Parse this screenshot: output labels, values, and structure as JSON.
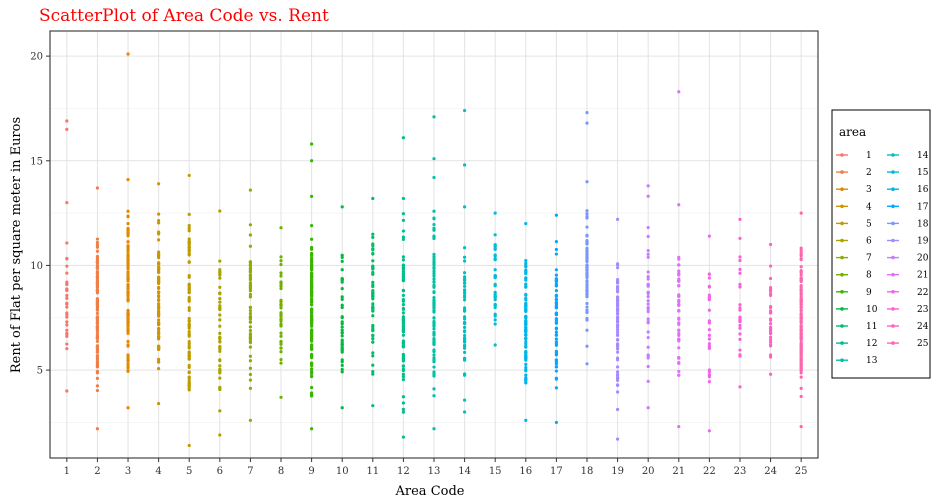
{
  "chart_data": {
    "type": "scatter",
    "title": "ScatterPlot of Area Code vs. Rent",
    "xlabel": "Area Code",
    "ylabel": "Rent of Flat per square meter in Euros",
    "xlim": [
      0.45,
      25.55
    ],
    "ylim": [
      0.8,
      21.2
    ],
    "x_ticks": [
      1,
      2,
      3,
      4,
      5,
      6,
      7,
      8,
      9,
      10,
      11,
      12,
      13,
      14,
      15,
      16,
      17,
      18,
      19,
      20,
      21,
      22,
      23,
      24,
      25
    ],
    "y_ticks": [
      5,
      10,
      15,
      20
    ],
    "grid": true,
    "legend": {
      "title": "area",
      "placement": "right",
      "columns": 2
    },
    "series": [
      {
        "name": "1",
        "x": 1,
        "color": "#F8766D",
        "range": [
          4.0,
          13.0
        ],
        "count": 30,
        "outliers": [
          16.5,
          16.9
        ]
      },
      {
        "name": "2",
        "x": 2,
        "color": "#EF7F49",
        "range": [
          2.2,
          13.7
        ],
        "count": 120,
        "outliers": []
      },
      {
        "name": "3",
        "x": 3,
        "color": "#E18A00",
        "range": [
          3.2,
          14.1
        ],
        "count": 110,
        "outliers": [
          20.1
        ]
      },
      {
        "name": "4",
        "x": 4,
        "color": "#D09400",
        "range": [
          3.4,
          13.9
        ],
        "count": 90,
        "outliers": []
      },
      {
        "name": "5",
        "x": 5,
        "color": "#BE9C00",
        "range": [
          1.4,
          14.3
        ],
        "count": 80,
        "outliers": []
      },
      {
        "name": "6",
        "x": 6,
        "color": "#AAA300",
        "range": [
          1.9,
          12.6
        ],
        "count": 45,
        "outliers": []
      },
      {
        "name": "7",
        "x": 7,
        "color": "#92AA00",
        "range": [
          2.6,
          13.6
        ],
        "count": 55,
        "outliers": []
      },
      {
        "name": "8",
        "x": 8,
        "color": "#72B000",
        "range": [
          3.7,
          11.8
        ],
        "count": 45,
        "outliers": []
      },
      {
        "name": "9",
        "x": 9,
        "color": "#39B600",
        "range": [
          2.2,
          13.3
        ],
        "count": 140,
        "outliers": [
          15.0,
          15.8
        ]
      },
      {
        "name": "10",
        "x": 10,
        "color": "#00BA42",
        "range": [
          3.2,
          12.8
        ],
        "count": 40,
        "outliers": []
      },
      {
        "name": "11",
        "x": 11,
        "color": "#00BD6A",
        "range": [
          3.3,
          13.2
        ],
        "count": 55,
        "outliers": []
      },
      {
        "name": "12",
        "x": 12,
        "color": "#00BF8A",
        "range": [
          1.8,
          13.2
        ],
        "count": 75,
        "outliers": [
          16.1
        ]
      },
      {
        "name": "13",
        "x": 13,
        "color": "#00C1A6",
        "range": [
          2.2,
          14.2
        ],
        "count": 85,
        "outliers": [
          15.1,
          17.1
        ]
      },
      {
        "name": "14",
        "x": 14,
        "color": "#00C0BE",
        "range": [
          3.0,
          12.8
        ],
        "count": 50,
        "outliers": [
          14.8,
          17.4
        ]
      },
      {
        "name": "15",
        "x": 15,
        "color": "#00BCD6",
        "range": [
          6.2,
          12.5
        ],
        "count": 35,
        "outliers": []
      },
      {
        "name": "16",
        "x": 16,
        "color": "#00B5EC",
        "range": [
          2.6,
          12.0
        ],
        "count": 90,
        "outliers": []
      },
      {
        "name": "17",
        "x": 17,
        "color": "#00A9FF",
        "range": [
          2.5,
          12.4
        ],
        "count": 60,
        "outliers": []
      },
      {
        "name": "18",
        "x": 18,
        "color": "#7997FF",
        "range": [
          5.3,
          14.0
        ],
        "count": 70,
        "outliers": [
          16.8,
          17.3
        ]
      },
      {
        "name": "19",
        "x": 19,
        "color": "#A58AFF",
        "range": [
          1.7,
          12.2
        ],
        "count": 70,
        "outliers": []
      },
      {
        "name": "20",
        "x": 20,
        "color": "#C77CFF",
        "range": [
          3.2,
          13.8
        ],
        "count": 35,
        "outliers": []
      },
      {
        "name": "21",
        "x": 21,
        "color": "#DF70F8",
        "range": [
          2.3,
          12.9
        ],
        "count": 50,
        "outliers": [
          18.3
        ]
      },
      {
        "name": "22",
        "x": 22,
        "color": "#F066E9",
        "range": [
          2.1,
          11.4
        ],
        "count": 30,
        "outliers": []
      },
      {
        "name": "23",
        "x": 23,
        "color": "#FB61D7",
        "range": [
          4.2,
          12.2
        ],
        "count": 25,
        "outliers": []
      },
      {
        "name": "24",
        "x": 24,
        "color": "#FF61C3",
        "range": [
          4.8,
          11.0
        ],
        "count": 35,
        "outliers": []
      },
      {
        "name": "25",
        "x": 25,
        "color": "#FF65AC",
        "range": [
          2.3,
          12.5
        ],
        "count": 110,
        "outliers": []
      }
    ]
  }
}
